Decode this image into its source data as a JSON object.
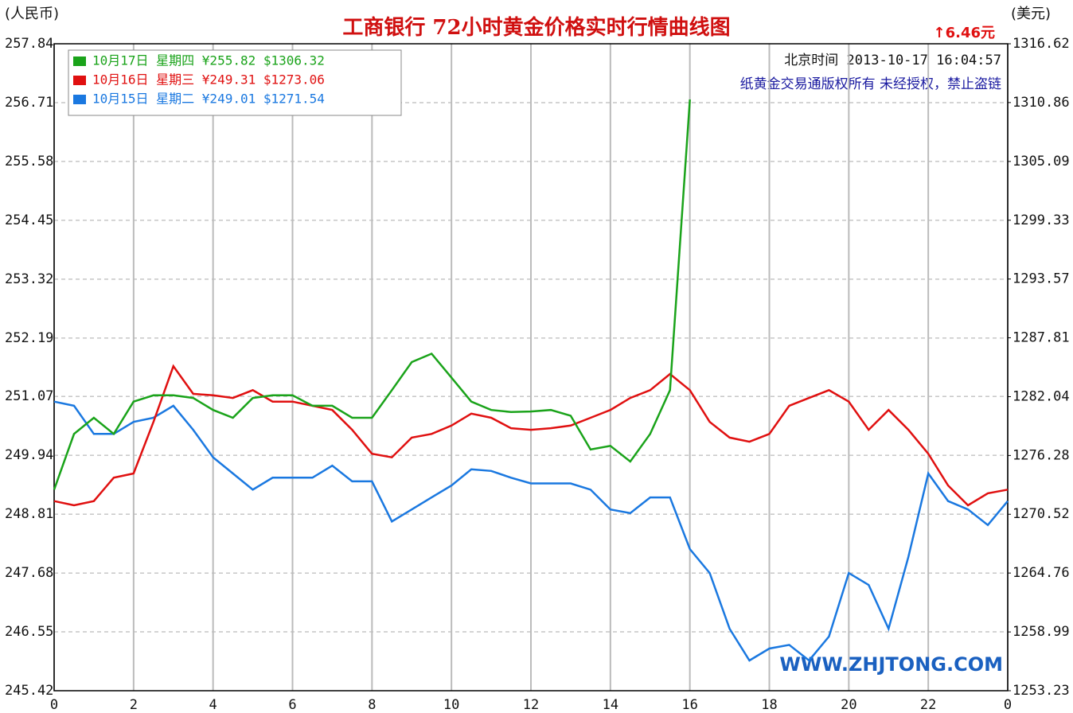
{
  "chart_data": {
    "type": "line",
    "title": "工商银行  72小时黄金价格实时行情曲线图",
    "y_label": "(人民币)",
    "y2_label": "(美元)",
    "change": "↑6.46元",
    "timestamp": "北京时间 2013-10-17 16:04:57",
    "notice": "纸黄金交易通版权所有 未经授权，禁止盗链",
    "watermark": "WWW.ZHJTONG.COM",
    "x": [
      0,
      0.5,
      1,
      1.5,
      2,
      2.5,
      3,
      3.5,
      4,
      4.5,
      5,
      5.5,
      6,
      6.5,
      7,
      7.5,
      8,
      8.5,
      9,
      9.5,
      10,
      10.5,
      11,
      11.5,
      12,
      12.5,
      13,
      13.5,
      14,
      14.5,
      15,
      15.5,
      16,
      16.5,
      17,
      17.5,
      18,
      18.5,
      19,
      19.5,
      20,
      20.5,
      21,
      21.5,
      22,
      22.5,
      23,
      23.5,
      24
    ],
    "xlim": [
      0,
      24
    ],
    "xticks": [
      0,
      2,
      4,
      6,
      8,
      10,
      12,
      14,
      16,
      18,
      20,
      22,
      {
        "value": 24,
        "label": "0"
      }
    ],
    "ylim": [
      245.42,
      257.84
    ],
    "yticks": [
      245.42,
      246.55,
      247.68,
      248.81,
      249.94,
      251.07,
      252.19,
      253.32,
      254.45,
      255.58,
      256.71,
      257.84
    ],
    "y2lim": [
      1253.23,
      1316.62
    ],
    "y2ticks": [
      1253.23,
      1258.99,
      1264.76,
      1270.52,
      1276.28,
      1282.04,
      1287.81,
      1293.57,
      1299.33,
      1305.09,
      1310.86,
      1316.62
    ],
    "grid": true,
    "legend": "top-left",
    "series": [
      {
        "name": "10月17日  星期四  ¥255.82  $1306.32",
        "color": "#1aa31a",
        "values": [
          249.28,
          250.35,
          250.66,
          250.35,
          250.97,
          251.09,
          251.09,
          251.04,
          250.81,
          250.66,
          251.04,
          251.09,
          251.09,
          250.89,
          250.89,
          250.66,
          250.66,
          251.19,
          251.73,
          251.89,
          251.43,
          250.97,
          250.81,
          250.77,
          250.78,
          250.81,
          250.7,
          250.05,
          250.12,
          249.82,
          250.35,
          251.19,
          256.77,
          null,
          null,
          null,
          null,
          null,
          null,
          null,
          null,
          null,
          null,
          null,
          null,
          null,
          null,
          null,
          null
        ]
      },
      {
        "name": "10月16日  星期三  ¥249.31  $1273.06",
        "color": "#e01010",
        "values": [
          249.06,
          248.98,
          249.06,
          249.51,
          249.59,
          250.58,
          251.65,
          251.12,
          251.09,
          251.04,
          251.19,
          250.97,
          250.97,
          250.89,
          250.81,
          250.43,
          249.97,
          249.9,
          250.28,
          250.35,
          250.51,
          250.74,
          250.66,
          250.46,
          250.43,
          250.46,
          250.51,
          250.66,
          250.81,
          251.04,
          251.19,
          251.5,
          251.19,
          250.58,
          250.28,
          250.2,
          250.35,
          250.89,
          251.04,
          251.19,
          250.97,
          250.43,
          250.81,
          250.43,
          249.97,
          249.36,
          248.98,
          249.21,
          249.28
        ]
      },
      {
        "name": "10月15日  星期二  ¥249.01  $1271.54",
        "color": "#1a78e0",
        "values": [
          250.97,
          250.89,
          250.35,
          250.35,
          250.58,
          250.66,
          250.89,
          250.43,
          249.9,
          249.59,
          249.28,
          249.51,
          249.51,
          249.51,
          249.74,
          249.44,
          249.44,
          248.67,
          248.9,
          249.13,
          249.36,
          249.67,
          249.64,
          249.51,
          249.4,
          249.4,
          249.4,
          249.28,
          248.9,
          248.83,
          249.13,
          249.13,
          248.14,
          247.68,
          246.61,
          246.0,
          246.23,
          246.3,
          246.0,
          246.46,
          247.68,
          247.45,
          246.61,
          247.99,
          249.59,
          249.06,
          248.9,
          248.6,
          249.06
        ]
      }
    ]
  }
}
